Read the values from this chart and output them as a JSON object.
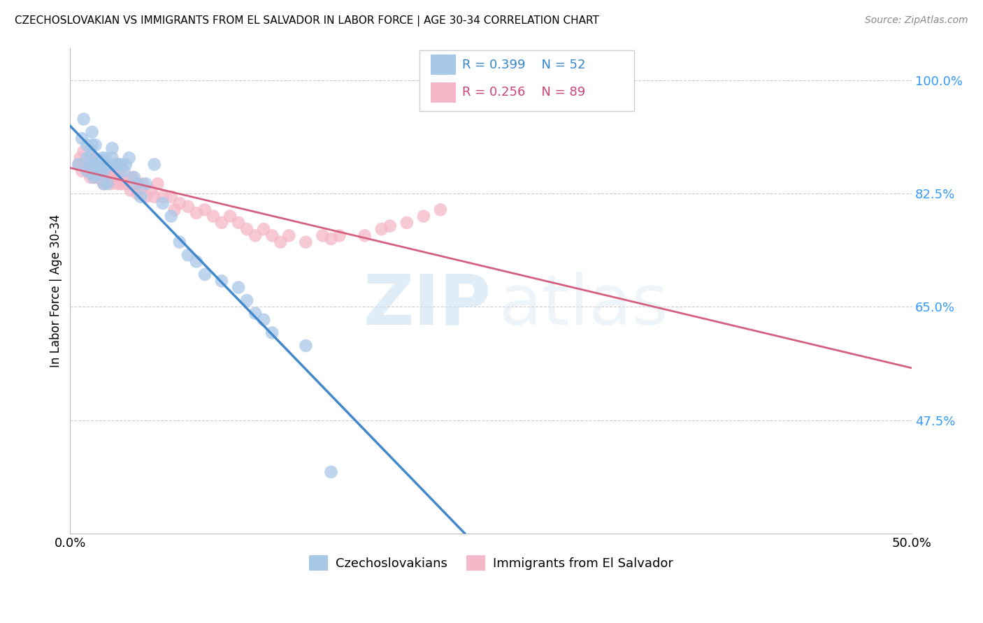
{
  "title": "CZECHOSLOVAKIAN VS IMMIGRANTS FROM EL SALVADOR IN LABOR FORCE | AGE 30-34 CORRELATION CHART",
  "source": "Source: ZipAtlas.com",
  "ylabel": "In Labor Force | Age 30-34",
  "xlim": [
    0.0,
    0.5
  ],
  "ylim": [
    0.3,
    1.05
  ],
  "yticks": [
    0.475,
    0.65,
    0.825,
    1.0
  ],
  "ytick_labels": [
    "47.5%",
    "65.0%",
    "82.5%",
    "100.0%"
  ],
  "xticks": [
    0.0,
    0.1,
    0.2,
    0.3,
    0.4,
    0.5
  ],
  "xtick_labels": [
    "0.0%",
    "",
    "",
    "",
    "",
    "50.0%"
  ],
  "legend_blue_R": "R = 0.399",
  "legend_blue_N": "N = 52",
  "legend_pink_R": "R = 0.256",
  "legend_pink_N": "N = 89",
  "blue_color": "#a8c8e8",
  "pink_color": "#f4b8c8",
  "blue_line_color": "#4488cc",
  "pink_line_color": "#d46080",
  "watermark_zip": "ZIP",
  "watermark_atlas": "atlas",
  "blue_scatter_x": [
    0.005,
    0.007,
    0.008,
    0.01,
    0.01,
    0.01,
    0.012,
    0.012,
    0.013,
    0.013,
    0.014,
    0.015,
    0.015,
    0.015,
    0.016,
    0.017,
    0.018,
    0.018,
    0.019,
    0.02,
    0.02,
    0.021,
    0.021,
    0.022,
    0.022,
    0.025,
    0.025,
    0.027,
    0.028,
    0.03,
    0.032,
    0.033,
    0.035,
    0.038,
    0.04,
    0.042,
    0.045,
    0.05,
    0.055,
    0.06,
    0.065,
    0.07,
    0.075,
    0.08,
    0.09,
    0.1,
    0.105,
    0.11,
    0.115,
    0.12,
    0.14,
    0.155
  ],
  "blue_scatter_y": [
    0.87,
    0.91,
    0.94,
    0.86,
    0.88,
    0.9,
    0.87,
    0.885,
    0.9,
    0.92,
    0.85,
    0.855,
    0.87,
    0.9,
    0.87,
    0.86,
    0.86,
    0.875,
    0.88,
    0.84,
    0.86,
    0.87,
    0.88,
    0.84,
    0.87,
    0.88,
    0.895,
    0.87,
    0.87,
    0.87,
    0.86,
    0.87,
    0.88,
    0.85,
    0.84,
    0.82,
    0.84,
    0.87,
    0.81,
    0.79,
    0.75,
    0.73,
    0.72,
    0.7,
    0.69,
    0.68,
    0.66,
    0.64,
    0.63,
    0.61,
    0.59,
    0.395
  ],
  "pink_scatter_x": [
    0.005,
    0.006,
    0.007,
    0.008,
    0.008,
    0.01,
    0.01,
    0.01,
    0.011,
    0.011,
    0.012,
    0.012,
    0.013,
    0.013,
    0.013,
    0.014,
    0.014,
    0.015,
    0.015,
    0.015,
    0.016,
    0.016,
    0.017,
    0.017,
    0.018,
    0.018,
    0.018,
    0.019,
    0.019,
    0.02,
    0.02,
    0.021,
    0.021,
    0.022,
    0.022,
    0.022,
    0.023,
    0.023,
    0.024,
    0.025,
    0.025,
    0.026,
    0.027,
    0.027,
    0.028,
    0.028,
    0.03,
    0.03,
    0.032,
    0.033,
    0.035,
    0.036,
    0.037,
    0.038,
    0.04,
    0.04,
    0.042,
    0.043,
    0.045,
    0.048,
    0.05,
    0.052,
    0.055,
    0.06,
    0.062,
    0.065,
    0.07,
    0.075,
    0.08,
    0.085,
    0.09,
    0.095,
    0.1,
    0.105,
    0.11,
    0.115,
    0.12,
    0.125,
    0.13,
    0.14,
    0.15,
    0.155,
    0.16,
    0.175,
    0.185,
    0.19,
    0.2,
    0.21,
    0.22
  ],
  "pink_scatter_y": [
    0.87,
    0.88,
    0.86,
    0.87,
    0.89,
    0.86,
    0.87,
    0.88,
    0.86,
    0.88,
    0.85,
    0.87,
    0.855,
    0.865,
    0.88,
    0.85,
    0.87,
    0.85,
    0.865,
    0.875,
    0.855,
    0.87,
    0.85,
    0.865,
    0.85,
    0.86,
    0.875,
    0.845,
    0.86,
    0.84,
    0.86,
    0.85,
    0.865,
    0.845,
    0.855,
    0.87,
    0.845,
    0.86,
    0.84,
    0.85,
    0.865,
    0.845,
    0.85,
    0.86,
    0.84,
    0.855,
    0.84,
    0.855,
    0.84,
    0.845,
    0.84,
    0.83,
    0.85,
    0.84,
    0.825,
    0.84,
    0.83,
    0.84,
    0.82,
    0.83,
    0.82,
    0.84,
    0.82,
    0.82,
    0.8,
    0.81,
    0.805,
    0.795,
    0.8,
    0.79,
    0.78,
    0.79,
    0.78,
    0.77,
    0.76,
    0.77,
    0.76,
    0.75,
    0.76,
    0.75,
    0.76,
    0.755,
    0.76,
    0.76,
    0.77,
    0.775,
    0.78,
    0.79,
    0.8
  ]
}
